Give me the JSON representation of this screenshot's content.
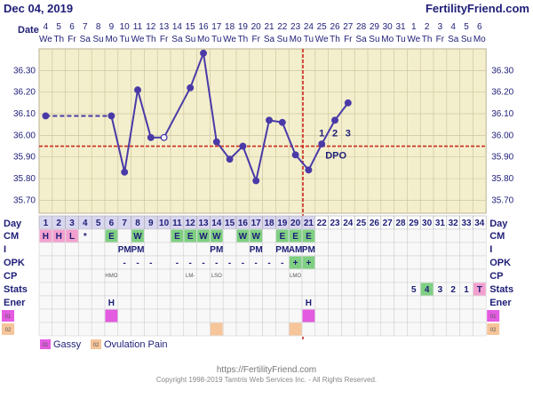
{
  "header": {
    "date": "Dec 04, 2019",
    "site": "FertilityFriend.com"
  },
  "footer": {
    "url": "https://FertilityFriend.com",
    "copyright": "Copyright 1998-2019 Tamtris Web Services Inc. - All Rights Reserved."
  },
  "labels": {
    "date": "Date",
    "day": "Day",
    "rows": [
      "CM",
      "I",
      "OPK",
      "CP",
      "Stats",
      "Ener"
    ],
    "dpo": "DPO"
  },
  "colors": {
    "line": "#4a3aa8",
    "coverline": "#cc2b1e",
    "grid_bg": "#f3efcc",
    "green": "#7fcf82",
    "pink": "#f3a0cf",
    "orange": "#f6c59a",
    "magenta": "#e25be0"
  },
  "dates": [
    "4",
    "5",
    "6",
    "7",
    "8",
    "9",
    "10",
    "11",
    "12",
    "13",
    "14",
    "15",
    "16",
    "17",
    "18",
    "19",
    "20",
    "21",
    "22",
    "23",
    "24",
    "25",
    "26",
    "27",
    "28",
    "29",
    "30",
    "31",
    "1",
    "2",
    "3",
    "4",
    "5",
    "6"
  ],
  "weekdays": [
    "We",
    "Th",
    "Fr",
    "Sa",
    "Su",
    "Mo",
    "Tu",
    "We",
    "Th",
    "Fr",
    "Sa",
    "Su",
    "Mo",
    "Tu",
    "We",
    "Th",
    "Fr",
    "Sa",
    "Su",
    "Mo",
    "Tu",
    "We",
    "Th",
    "Fr",
    "Sa",
    "Su",
    "Mo",
    "Tu",
    "We",
    "Th",
    "Fr",
    "Sa",
    "Su",
    "Mo"
  ],
  "days": [
    "1",
    "2",
    "3",
    "4",
    "5",
    "6",
    "7",
    "8",
    "9",
    "10",
    "11",
    "12",
    "13",
    "14",
    "15",
    "16",
    "17",
    "18",
    "19",
    "20",
    "21",
    "22",
    "23",
    "24",
    "25",
    "26",
    "27",
    "28",
    "29",
    "30",
    "31",
    "32",
    "33",
    "34"
  ],
  "dpo_labels": [
    "1",
    "2",
    "3"
  ],
  "chart_data": {
    "type": "line",
    "xlabel": "Day",
    "y_ticks": [
      "35.70",
      "35.80",
      "35.90",
      "36.00",
      "36.10",
      "36.20",
      "36.30"
    ],
    "ylim": [
      35.64,
      36.4
    ],
    "coverline": 35.95,
    "ovulation_day": 20,
    "temps": [
      {
        "day": 1,
        "temp": 36.09
      },
      {
        "day": 6,
        "temp": 36.09
      },
      {
        "day": 7,
        "temp": 35.83
      },
      {
        "day": 8,
        "temp": 36.21
      },
      {
        "day": 9,
        "temp": 35.99
      },
      {
        "day": 10,
        "temp": 35.99,
        "open": true
      },
      {
        "day": 12,
        "temp": 36.22
      },
      {
        "day": 13,
        "temp": 36.38
      },
      {
        "day": 14,
        "temp": 35.97
      },
      {
        "day": 15,
        "temp": 35.89
      },
      {
        "day": 16,
        "temp": 35.95
      },
      {
        "day": 17,
        "temp": 35.79
      },
      {
        "day": 18,
        "temp": 36.07
      },
      {
        "day": 19,
        "temp": 36.06
      },
      {
        "day": 20,
        "temp": 35.91
      },
      {
        "day": 21,
        "temp": 35.84
      },
      {
        "day": 22,
        "temp": 35.96
      },
      {
        "day": 23,
        "temp": 36.07
      },
      {
        "day": 24,
        "temp": 36.15
      }
    ],
    "dashed_ranges": [
      [
        1,
        6
      ]
    ],
    "gaps_after": [
      6
    ]
  },
  "rows": {
    "CM": [
      {
        "day": 1,
        "text": "H",
        "color": "pink"
      },
      {
        "day": 2,
        "text": "H",
        "color": "pink"
      },
      {
        "day": 3,
        "text": "L",
        "color": "pink"
      },
      {
        "day": 4,
        "text": "*",
        "color": null
      },
      {
        "day": 6,
        "text": "E",
        "color": "green"
      },
      {
        "day": 8,
        "text": "W",
        "color": "green"
      },
      {
        "day": 11,
        "text": "E",
        "color": "green"
      },
      {
        "day": 12,
        "text": "E",
        "color": "green"
      },
      {
        "day": 13,
        "text": "W",
        "color": "green"
      },
      {
        "day": 14,
        "text": "W",
        "color": "green"
      },
      {
        "day": 16,
        "text": "W",
        "color": "green"
      },
      {
        "day": 17,
        "text": "W",
        "color": "green"
      },
      {
        "day": 19,
        "text": "E",
        "color": "green"
      },
      {
        "day": 20,
        "text": "E",
        "color": "green"
      },
      {
        "day": 21,
        "text": "E",
        "color": "green"
      }
    ],
    "I": [
      {
        "day": 7,
        "text": "PM"
      },
      {
        "day": 8,
        "text": "PM"
      },
      {
        "day": 14,
        "text": "PM"
      },
      {
        "day": 17,
        "text": "PM"
      },
      {
        "day": 19,
        "text": "PM"
      },
      {
        "day": 20,
        "text": "AM"
      },
      {
        "day": 21,
        "text": "PM"
      }
    ],
    "OPK": [
      {
        "day": 7,
        "text": "-"
      },
      {
        "day": 8,
        "text": "-"
      },
      {
        "day": 9,
        "text": "-"
      },
      {
        "day": 11,
        "text": "-"
      },
      {
        "day": 12,
        "text": "-"
      },
      {
        "day": 13,
        "text": "-"
      },
      {
        "day": 14,
        "text": "-"
      },
      {
        "day": 15,
        "text": "-"
      },
      {
        "day": 16,
        "text": "-"
      },
      {
        "day": 17,
        "text": "-"
      },
      {
        "day": 18,
        "text": "-"
      },
      {
        "day": 19,
        "text": "-"
      },
      {
        "day": 20,
        "text": "+",
        "color": "green"
      },
      {
        "day": 21,
        "text": "+",
        "color": "green"
      }
    ],
    "CP": [
      {
        "day": 6,
        "text": "HMO"
      },
      {
        "day": 12,
        "text": "LM-"
      },
      {
        "day": 14,
        "text": "LSO"
      },
      {
        "day": 20,
        "text": "LMO"
      }
    ],
    "Stats": [
      {
        "day": 29,
        "text": "5"
      },
      {
        "day": 30,
        "text": "4",
        "color": "green"
      },
      {
        "day": 31,
        "text": "3"
      },
      {
        "day": 32,
        "text": "2"
      },
      {
        "day": 33,
        "text": "1"
      },
      {
        "day": 34,
        "text": "T",
        "color": "pink"
      }
    ],
    "Ener": [
      {
        "day": 6,
        "text": "H"
      },
      {
        "day": 21,
        "text": "H"
      }
    ]
  },
  "symptoms": [
    {
      "code": "01",
      "color": "magenta",
      "days": [
        6,
        21
      ]
    },
    {
      "code": "02",
      "color": "orange",
      "days": [
        14,
        20
      ]
    }
  ],
  "legend": [
    {
      "code": "01",
      "label": "Gassy",
      "color": "magenta"
    },
    {
      "code": "02",
      "label": "Ovulation Pain",
      "color": "orange"
    }
  ]
}
